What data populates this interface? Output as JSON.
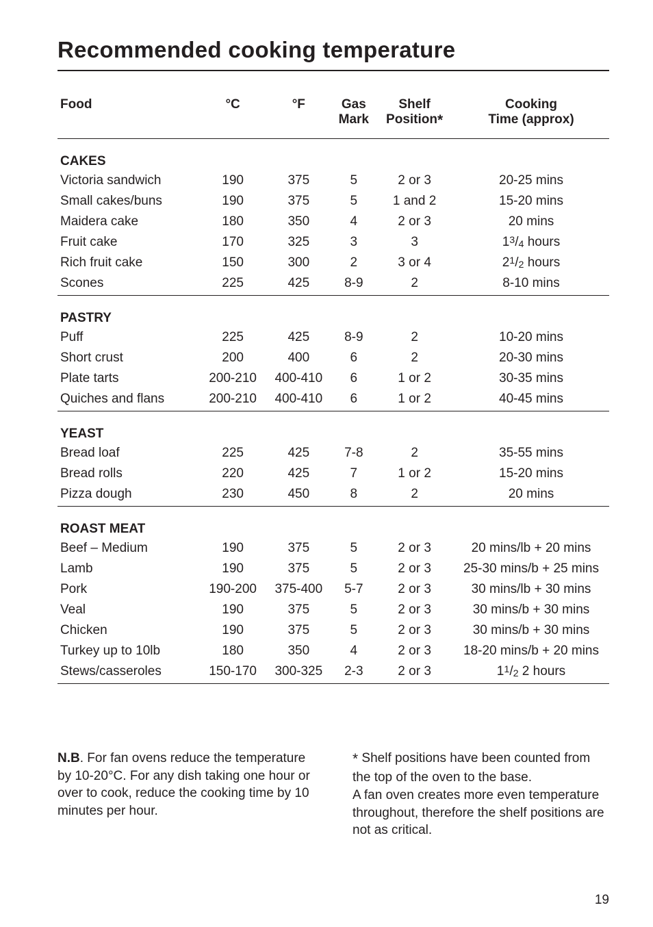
{
  "title": "Recommended cooking temperature",
  "title_fontsize": 33,
  "body_fontsize": 19,
  "colors": {
    "text": "#231f20",
    "rule": "#231f20",
    "background": "#ffffff"
  },
  "table": {
    "columns": [
      "Food",
      "°C",
      "°F",
      "Gas\nMark",
      "Shelf\nPosition*",
      "Cooking\nTime (approx)"
    ],
    "sections": [
      {
        "name": "CAKES",
        "rows": [
          [
            "Victoria sandwich",
            "190",
            "375",
            "5",
            "2 or 3",
            "20-25 mins"
          ],
          [
            "Small cakes/buns",
            "190",
            "375",
            "5",
            "1 and 2",
            "15-20 mins"
          ],
          [
            "Maidera cake",
            "180",
            "350",
            "4",
            "2 or 3",
            "20 mins"
          ],
          [
            "Fruit cake",
            "170",
            "325",
            "3",
            "3",
            "1³/₄ hours"
          ],
          [
            "Rich fruit cake",
            "150",
            "300",
            "2",
            "3 or 4",
            "2¹/₂ hours"
          ],
          [
            "Scones",
            "225",
            "425",
            "8-9",
            "2",
            "8-10 mins"
          ]
        ]
      },
      {
        "name": "PASTRY",
        "rows": [
          [
            "Puff",
            "225",
            "425",
            "8-9",
            "2",
            "10-20 mins"
          ],
          [
            "Short crust",
            "200",
            "400",
            "6",
            "2",
            "20-30 mins"
          ],
          [
            "Plate tarts",
            "200-210",
            "400-410",
            "6",
            "1 or 2",
            "30-35 mins"
          ],
          [
            "Quiches and flans",
            "200-210",
            "400-410",
            "6",
            "1 or 2",
            "40-45 mins"
          ]
        ]
      },
      {
        "name": "YEAST",
        "rows": [
          [
            "Bread loaf",
            "225",
            "425",
            "7-8",
            "2",
            "35-55 mins"
          ],
          [
            "Bread rolls",
            "220",
            "425",
            "7",
            "1 or 2",
            "15-20 mins"
          ],
          [
            "Pizza dough",
            "230",
            "450",
            "8",
            "2",
            "20 mins"
          ]
        ]
      },
      {
        "name": "ROAST MEAT",
        "rows": [
          [
            "Beef – Medium",
            "190",
            "375",
            "5",
            "2 or 3",
            "20 mins/lb + 20 mins"
          ],
          [
            "Lamb",
            "190",
            "375",
            "5",
            "2 or 3",
            "25-30 mins/b + 25 mins"
          ],
          [
            "Pork",
            "190-200",
            "375-400",
            "5-7",
            "2 or 3",
            "30 mins/lb + 30 mins"
          ],
          [
            "Veal",
            "190",
            "375",
            "5",
            "2 or 3",
            "30 mins/b + 30 mins"
          ],
          [
            "Chicken",
            "190",
            "375",
            "5",
            "2 or 3",
            "30 mins/b + 30 mins"
          ],
          [
            "Turkey up to 10lb",
            "180",
            "350",
            "4",
            "2 or 3",
            "18-20 mins/b + 20 mins"
          ],
          [
            "Stews/casseroles",
            "150-170",
            "300-325",
            "2-3",
            "2 or 3",
            "1¹/₂ 2 hours"
          ]
        ]
      }
    ]
  },
  "notes": {
    "left_bold": "N.B",
    "left": ". For fan ovens reduce the temper­ature by 10-20°C. For any dish taking one hour or over to cook, reduce the cooking time by 10 minutes per hour.",
    "right_star": "*",
    "right": " Shelf positions have been counted from the top of the oven to the base.\nA fan oven creates more even tempera­ture throughout, therefore the shelf posi­tions are not as critical."
  },
  "page_number": "19"
}
